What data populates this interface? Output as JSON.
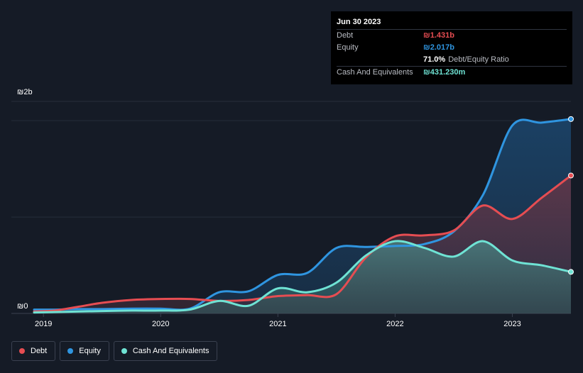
{
  "chart_data": {
    "type": "area",
    "currency": "₪",
    "y_tick_labels": [
      "₪2b",
      "₪0"
    ],
    "x_tick_labels": [
      "2019",
      "2020",
      "2021",
      "2022",
      "2023"
    ],
    "ylim": [
      0,
      2.2
    ],
    "xlim": [
      2018.92,
      2023.5
    ],
    "grid": true,
    "legend_position": "bottom-left",
    "series": [
      {
        "name": "Debt",
        "color": "#e64d52",
        "x": [
          2018.92,
          2019.1,
          2019.3,
          2019.5,
          2019.75,
          2020.0,
          2020.25,
          2020.5,
          2020.75,
          2021.0,
          2021.25,
          2021.5,
          2021.75,
          2022.0,
          2022.25,
          2022.5,
          2022.75,
          2023.0,
          2023.25,
          2023.5
        ],
        "values": [
          0.02,
          0.03,
          0.07,
          0.11,
          0.14,
          0.15,
          0.15,
          0.13,
          0.14,
          0.18,
          0.19,
          0.2,
          0.58,
          0.8,
          0.81,
          0.86,
          1.12,
          0.98,
          1.2,
          1.431
        ]
      },
      {
        "name": "Equity",
        "color": "#2f95e0",
        "x": [
          2018.92,
          2019.1,
          2019.3,
          2019.5,
          2019.75,
          2020.0,
          2020.25,
          2020.5,
          2020.75,
          2021.0,
          2021.25,
          2021.5,
          2021.75,
          2022.0,
          2022.25,
          2022.5,
          2022.75,
          2023.0,
          2023.25,
          2023.5
        ],
        "values": [
          0.04,
          0.04,
          0.045,
          0.045,
          0.05,
          0.05,
          0.05,
          0.22,
          0.23,
          0.4,
          0.42,
          0.68,
          0.69,
          0.7,
          0.72,
          0.85,
          1.23,
          1.95,
          1.98,
          2.017
        ]
      },
      {
        "name": "Cash And Equivalents",
        "color": "#6fe3d4",
        "x": [
          2018.92,
          2019.1,
          2019.3,
          2019.5,
          2019.75,
          2020.0,
          2020.25,
          2020.5,
          2020.75,
          2021.0,
          2021.25,
          2021.5,
          2021.75,
          2022.0,
          2022.25,
          2022.5,
          2022.75,
          2023.0,
          2023.25,
          2023.5
        ],
        "values": [
          0.01,
          0.015,
          0.02,
          0.025,
          0.03,
          0.03,
          0.04,
          0.13,
          0.08,
          0.26,
          0.22,
          0.32,
          0.6,
          0.75,
          0.68,
          0.59,
          0.75,
          0.55,
          0.5,
          0.431
        ]
      }
    ]
  },
  "tooltip": {
    "date": "Jun 30 2023",
    "rows": [
      {
        "label": "Debt",
        "value": "₪1.431b",
        "color": "#e64d52"
      },
      {
        "label": "Equity",
        "value": "₪2.017b",
        "color": "#2f95e0"
      },
      {
        "label": "",
        "value": "71.0%",
        "sub": "Debt/Equity Ratio",
        "color": "#ffffff"
      },
      {
        "label": "Cash And Equivalents",
        "value": "₪431.230m",
        "color": "#6fe3d4"
      }
    ]
  },
  "legend": [
    {
      "label": "Debt",
      "color": "#e64d52"
    },
    {
      "label": "Equity",
      "color": "#2f95e0"
    },
    {
      "label": "Cash And Equivalents",
      "color": "#6fe3d4"
    }
  ]
}
